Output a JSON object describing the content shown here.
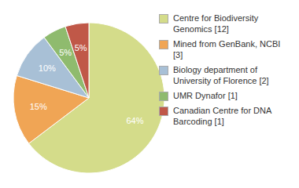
{
  "chart_data": {
    "type": "pie",
    "categories": [
      "Centre for Biodiversity\nGenomics [12]",
      "Mined from GenBank, NCBI [3]",
      "Biology department of\nUniversity of Florence [2]",
      "UMR Dynafor [1]",
      "Canadian Centre for DNA\nBarcoding [1]"
    ],
    "values": [
      64,
      15,
      10,
      5,
      5
    ],
    "value_labels": [
      "64%",
      "15%",
      "10%",
      "5%",
      "5%"
    ],
    "colors": [
      "#d4dc8a",
      "#f0a555",
      "#a8c0d6",
      "#8fbb6e",
      "#c05848"
    ],
    "data_labels": true,
    "legend": "right"
  }
}
